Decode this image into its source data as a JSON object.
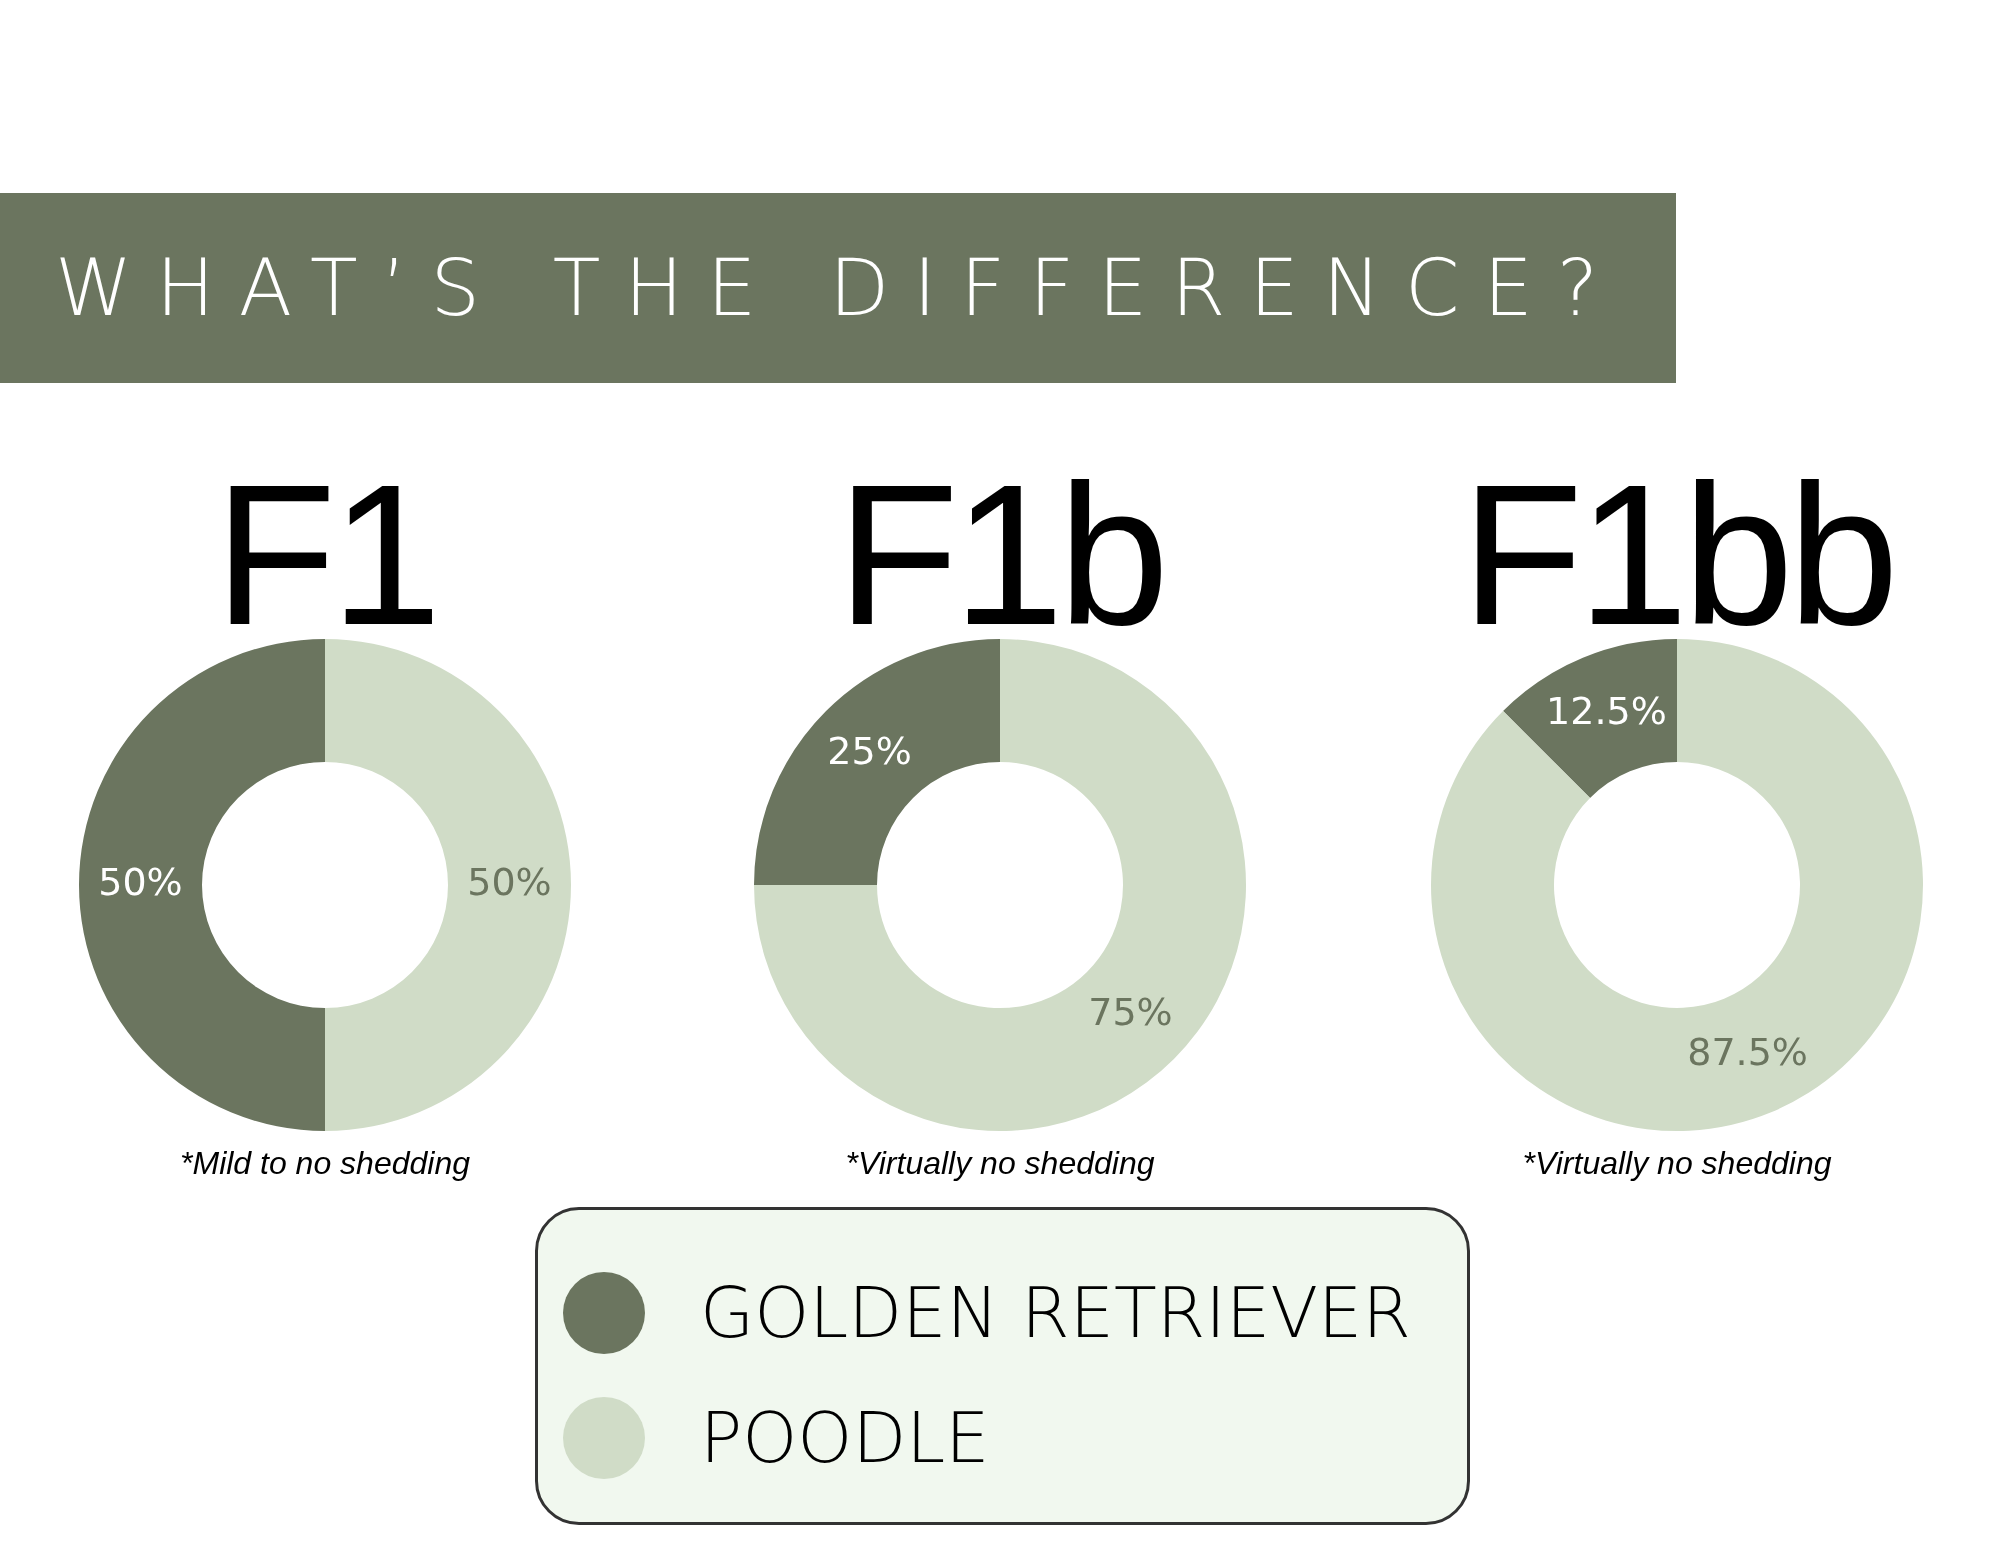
{
  "chart_data": [
    {
      "type": "other",
      "title": "WHAT’S THE DIFFERENCE?"
    },
    {
      "type": "donut",
      "title": "F1",
      "categories": [
        null,
        null
      ],
      "values": [
        50,
        50
      ],
      "colors": [
        "#6b755f",
        "#d0dcc7"
      ],
      "value_labels": [
        "50%",
        "50%"
      ],
      "annotations": [
        "*Mild to no shedding"
      ]
    },
    {
      "type": "donut",
      "title": "F1b",
      "categories": [
        "GOLDEN RETRIEVER",
        "POODLE"
      ],
      "values": [
        25,
        75
      ],
      "colors": [
        "#6b755f",
        "#d0dcc7"
      ],
      "value_labels": [
        "25%",
        "75%"
      ],
      "legend": "bottom",
      "annotations": [
        "*Virtually no shedding"
      ]
    },
    {
      "type": "donut",
      "title": "F1bb",
      "categories": [
        null,
        null
      ],
      "values": [
        12.5,
        87.5
      ],
      "colors": [
        "#6b755f",
        "#d0dcc7"
      ],
      "value_labels": [
        "12.5%",
        "87.5%"
      ],
      "annotations": [
        "*Virtually no shedding"
      ]
    }
  ]
}
